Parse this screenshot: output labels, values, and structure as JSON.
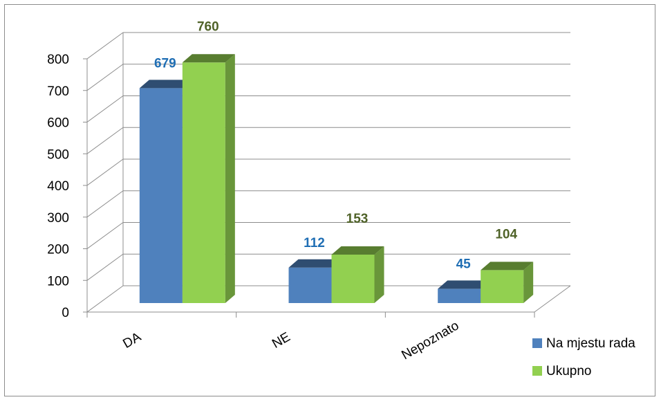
{
  "chart_data": {
    "type": "bar",
    "categories": [
      "DA",
      "NE",
      "Nepoznato"
    ],
    "series": [
      {
        "name": "Na mjestu rada",
        "values": [
          679,
          112,
          45
        ],
        "color": "#4f81bd",
        "label_color": "#1f6eb4"
      },
      {
        "name": "Ukupno",
        "values": [
          760,
          153,
          104
        ],
        "color": "#92d050",
        "label_color": "#4f6228"
      }
    ],
    "ylim": [
      0,
      800
    ],
    "yticks": [
      "0",
      "100",
      "200",
      "300",
      "400",
      "500",
      "600",
      "700",
      "800"
    ],
    "grid": true,
    "legend_position": "bottom-right",
    "style": "3d-column"
  }
}
